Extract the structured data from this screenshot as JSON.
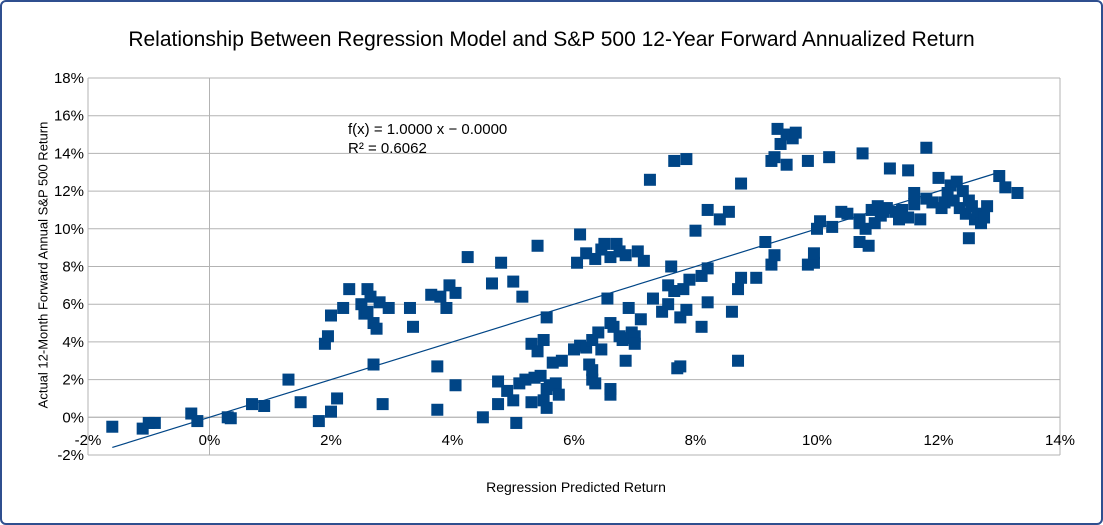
{
  "chart_data": {
    "type": "scatter",
    "title": "Relationship Between Regression Model and S&P 500 12-Year Forward Annualized Return",
    "xlabel": "Regression Predicted Return",
    "ylabel": "Actual 12-Month Forward Annual S&P 500 Return",
    "xlim": [
      -2,
      14
    ],
    "ylim": [
      -2,
      18
    ],
    "x_ticks": [
      "-2%",
      "0%",
      "2%",
      "4%",
      "6%",
      "8%",
      "10%",
      "12%",
      "14%"
    ],
    "y_ticks": [
      "18%",
      "16%",
      "14%",
      "12%",
      "10%",
      "8%",
      "6%",
      "4%",
      "2%",
      "0%",
      "-2%"
    ],
    "grid": "horizontal",
    "marker_color": "#004586",
    "trendline": {
      "equation": "f(x) = 1.0000 x − 0.0000",
      "r2": "R² = 0.6062",
      "x": [
        -1.6,
        13.0
      ],
      "y": [
        -1.6,
        13.0
      ]
    },
    "points": [
      [
        -1.6,
        -0.5
      ],
      [
        -1.1,
        -0.6
      ],
      [
        -1.0,
        -0.3
      ],
      [
        -0.9,
        -0.3
      ],
      [
        -0.3,
        0.2
      ],
      [
        -0.2,
        -0.2
      ],
      [
        0.3,
        0.0
      ],
      [
        0.35,
        -0.05
      ],
      [
        0.7,
        0.7
      ],
      [
        0.9,
        0.6
      ],
      [
        1.3,
        2.0
      ],
      [
        1.5,
        0.8
      ],
      [
        1.8,
        -0.2
      ],
      [
        1.9,
        3.9
      ],
      [
        1.95,
        4.3
      ],
      [
        2.0,
        5.4
      ],
      [
        2.0,
        0.3
      ],
      [
        2.1,
        1.0
      ],
      [
        2.2,
        5.8
      ],
      [
        2.3,
        6.8
      ],
      [
        2.5,
        6.0
      ],
      [
        2.55,
        5.5
      ],
      [
        2.6,
        5.6
      ],
      [
        2.6,
        6.8
      ],
      [
        2.65,
        6.4
      ],
      [
        2.7,
        5.0
      ],
      [
        2.7,
        2.8
      ],
      [
        2.75,
        4.7
      ],
      [
        2.8,
        6.1
      ],
      [
        2.85,
        0.7
      ],
      [
        2.95,
        5.8
      ],
      [
        3.3,
        5.8
      ],
      [
        3.35,
        4.8
      ],
      [
        3.65,
        6.5
      ],
      [
        3.75,
        2.7
      ],
      [
        3.75,
        0.4
      ],
      [
        3.8,
        6.4
      ],
      [
        3.9,
        5.8
      ],
      [
        3.95,
        7.0
      ],
      [
        4.05,
        6.6
      ],
      [
        4.05,
        1.7
      ],
      [
        4.25,
        8.5
      ],
      [
        4.5,
        0.0
      ],
      [
        4.65,
        7.1
      ],
      [
        4.75,
        1.9
      ],
      [
        4.75,
        0.7
      ],
      [
        4.8,
        8.2
      ],
      [
        4.9,
        1.4
      ],
      [
        5.0,
        0.9
      ],
      [
        5.0,
        7.2
      ],
      [
        5.05,
        -0.3
      ],
      [
        5.1,
        1.8
      ],
      [
        5.15,
        6.4
      ],
      [
        5.2,
        2.0
      ],
      [
        5.3,
        3.9
      ],
      [
        5.3,
        0.8
      ],
      [
        5.35,
        2.1
      ],
      [
        5.4,
        9.1
      ],
      [
        5.4,
        3.5
      ],
      [
        5.45,
        2.2
      ],
      [
        5.5,
        0.9
      ],
      [
        5.5,
        4.1
      ],
      [
        5.55,
        5.3
      ],
      [
        5.55,
        1.5
      ],
      [
        5.55,
        0.5
      ],
      [
        5.6,
        1.7
      ],
      [
        5.65,
        2.9
      ],
      [
        5.7,
        1.8
      ],
      [
        5.75,
        1.2
      ],
      [
        5.8,
        3.0
      ],
      [
        6.0,
        3.6
      ],
      [
        6.05,
        8.2
      ],
      [
        6.1,
        3.8
      ],
      [
        6.1,
        9.7
      ],
      [
        6.2,
        3.7
      ],
      [
        6.2,
        8.7
      ],
      [
        6.25,
        2.8
      ],
      [
        6.3,
        4.1
      ],
      [
        6.3,
        2.0
      ],
      [
        6.3,
        2.5
      ],
      [
        6.35,
        1.8
      ],
      [
        6.35,
        8.4
      ],
      [
        6.4,
        4.5
      ],
      [
        6.45,
        3.6
      ],
      [
        6.45,
        8.9
      ],
      [
        6.5,
        9.2
      ],
      [
        6.55,
        6.3
      ],
      [
        6.6,
        1.2
      ],
      [
        6.6,
        1.5
      ],
      [
        6.6,
        8.5
      ],
      [
        6.6,
        5.0
      ],
      [
        6.65,
        4.8
      ],
      [
        6.7,
        9.2
      ],
      [
        6.75,
        8.8
      ],
      [
        6.75,
        4.3
      ],
      [
        6.8,
        4.1
      ],
      [
        6.85,
        8.6
      ],
      [
        6.85,
        3.0
      ],
      [
        6.9,
        5.8
      ],
      [
        6.9,
        4.2
      ],
      [
        6.95,
        4.5
      ],
      [
        7.0,
        4.3
      ],
      [
        7.0,
        3.9
      ],
      [
        7.05,
        8.8
      ],
      [
        7.1,
        5.2
      ],
      [
        7.15,
        8.3
      ],
      [
        7.25,
        12.6
      ],
      [
        7.3,
        6.3
      ],
      [
        7.45,
        5.6
      ],
      [
        7.55,
        7.0
      ],
      [
        7.55,
        6.0
      ],
      [
        7.6,
        8.0
      ],
      [
        7.65,
        13.6
      ],
      [
        7.65,
        6.7
      ],
      [
        7.7,
        2.6
      ],
      [
        7.75,
        5.3
      ],
      [
        7.75,
        2.7
      ],
      [
        7.8,
        6.8
      ],
      [
        7.85,
        13.7
      ],
      [
        7.85,
        5.7
      ],
      [
        7.9,
        7.3
      ],
      [
        8.0,
        9.9
      ],
      [
        8.1,
        4.8
      ],
      [
        8.1,
        7.5
      ],
      [
        8.2,
        11.0
      ],
      [
        8.2,
        6.1
      ],
      [
        8.2,
        7.9
      ],
      [
        8.4,
        10.5
      ],
      [
        8.55,
        10.9
      ],
      [
        8.6,
        5.6
      ],
      [
        8.7,
        6.8
      ],
      [
        8.7,
        3.0
      ],
      [
        8.75,
        7.4
      ],
      [
        8.75,
        12.4
      ],
      [
        9.0,
        7.4
      ],
      [
        9.15,
        9.3
      ],
      [
        9.25,
        8.1
      ],
      [
        9.25,
        13.6
      ],
      [
        9.3,
        8.6
      ],
      [
        9.3,
        13.8
      ],
      [
        9.35,
        15.3
      ],
      [
        9.4,
        14.5
      ],
      [
        9.5,
        13.4
      ],
      [
        9.5,
        15.0
      ],
      [
        9.6,
        14.8
      ],
      [
        9.65,
        15.1
      ],
      [
        9.85,
        13.6
      ],
      [
        9.85,
        8.1
      ],
      [
        9.95,
        8.2
      ],
      [
        9.95,
        8.7
      ],
      [
        10.0,
        10.0
      ],
      [
        10.05,
        10.4
      ],
      [
        10.2,
        13.8
      ],
      [
        10.25,
        10.1
      ],
      [
        10.4,
        10.9
      ],
      [
        10.5,
        10.8
      ],
      [
        10.7,
        10.3
      ],
      [
        10.7,
        10.5
      ],
      [
        10.7,
        9.3
      ],
      [
        10.75,
        14.0
      ],
      [
        10.8,
        10.0
      ],
      [
        10.85,
        9.1
      ],
      [
        10.9,
        11.0
      ],
      [
        10.95,
        10.3
      ],
      [
        11.0,
        11.2
      ],
      [
        11.05,
        10.7
      ],
      [
        11.1,
        10.9
      ],
      [
        11.15,
        11.1
      ],
      [
        11.2,
        13.2
      ],
      [
        11.3,
        10.9
      ],
      [
        11.35,
        10.5
      ],
      [
        11.4,
        11.0
      ],
      [
        11.5,
        10.6
      ],
      [
        11.5,
        13.1
      ],
      [
        11.6,
        11.3
      ],
      [
        11.6,
        11.9
      ],
      [
        11.7,
        10.5
      ],
      [
        11.8,
        14.3
      ],
      [
        11.8,
        11.6
      ],
      [
        11.9,
        11.4
      ],
      [
        12.0,
        12.7
      ],
      [
        12.05,
        11.1
      ],
      [
        12.1,
        11.4
      ],
      [
        12.15,
        11.9
      ],
      [
        12.2,
        12.3
      ],
      [
        12.25,
        11.5
      ],
      [
        12.3,
        12.5
      ],
      [
        12.35,
        11.1
      ],
      [
        12.4,
        12.0
      ],
      [
        12.45,
        10.8
      ],
      [
        12.5,
        11.5
      ],
      [
        12.5,
        9.5
      ],
      [
        12.55,
        11.2
      ],
      [
        12.6,
        10.5
      ],
      [
        12.65,
        10.8
      ],
      [
        12.7,
        10.3
      ],
      [
        12.75,
        10.6
      ],
      [
        12.8,
        11.2
      ],
      [
        13.0,
        12.8
      ],
      [
        13.1,
        12.2
      ],
      [
        13.3,
        11.9
      ]
    ]
  }
}
